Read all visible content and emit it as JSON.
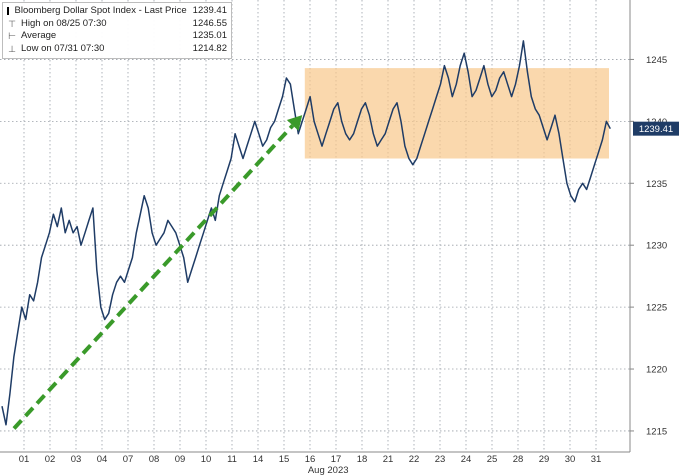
{
  "legend": {
    "rows": [
      {
        "label": "Bloomberg Dollar Spot Index - Last Price",
        "value": "1239.41",
        "marker": "square"
      },
      {
        "label": "High on 08/25 07:30",
        "value": "1246.55",
        "marker": "high"
      },
      {
        "label": "Average",
        "value": "1235.01",
        "marker": "avg"
      },
      {
        "label": "Low on 07/31 07:30",
        "value": "1214.82",
        "marker": "low"
      }
    ]
  },
  "last_price_label": "1239.41",
  "colors": {
    "line": "#1f3c66",
    "arrow": "#3a9a2a",
    "band": "#f8c88a",
    "grid": "#9aa0a8",
    "last_price_box": "#1f3c66"
  },
  "chart_data": {
    "type": "line",
    "title": "",
    "xlabel": "Aug 2023",
    "ylabel": "",
    "ylim": [
      1213.3,
      1249.8
    ],
    "y_ticks": [
      1215,
      1220,
      1225,
      1230,
      1235,
      1240,
      1245
    ],
    "x_tick_labels": [
      "01",
      "02",
      "03",
      "04",
      "07",
      "08",
      "09",
      "10",
      "11",
      "14",
      "15",
      "16",
      "17",
      "18",
      "21",
      "22",
      "23",
      "24",
      "25",
      "28",
      "29",
      "30",
      "31"
    ],
    "grid": true,
    "series": [
      {
        "values": [
          1217,
          1215.5,
          1218,
          1221,
          1223,
          1225,
          1224,
          1226,
          1225.5,
          1227,
          1229,
          1230,
          1231,
          1232.5,
          1231.5,
          1233,
          1231,
          1232,
          1231,
          1231.5,
          1230,
          1231,
          1232,
          1233,
          1228,
          1225,
          1224,
          1224.5,
          1226,
          1227,
          1227.5,
          1227,
          1228,
          1229,
          1231,
          1232.5,
          1234,
          1233,
          1231,
          1230,
          1230.5,
          1231,
          1232,
          1231.5,
          1231,
          1230,
          1229,
          1227,
          1228,
          1229,
          1230,
          1231,
          1232,
          1233,
          1232,
          1234,
          1235,
          1236,
          1237,
          1239,
          1238,
          1237,
          1238,
          1239,
          1240,
          1239,
          1238,
          1238.5,
          1239.5,
          1240,
          1241,
          1242,
          1243.5,
          1243,
          1241,
          1239,
          1240,
          1241,
          1242,
          1240,
          1239,
          1238,
          1239,
          1240,
          1241,
          1241.5,
          1240,
          1239,
          1238.5,
          1239,
          1240,
          1241,
          1241.5,
          1240.5,
          1239,
          1238,
          1238.5,
          1239,
          1240,
          1241,
          1241.5,
          1240,
          1238,
          1237,
          1236.5,
          1237,
          1238,
          1239,
          1240,
          1241,
          1242,
          1243,
          1244.5,
          1243.5,
          1242,
          1243,
          1244.5,
          1245.5,
          1244,
          1242,
          1242.5,
          1243.5,
          1244.5,
          1243,
          1242,
          1242.5,
          1243.5,
          1244,
          1243,
          1242,
          1243,
          1244.5,
          1246.5,
          1244,
          1242,
          1241,
          1240.5,
          1239.5,
          1238.5,
          1239.5,
          1240.5,
          1239,
          1237,
          1235,
          1234,
          1233.5,
          1234.5,
          1235,
          1234.5,
          1235.5,
          1236.5,
          1237.5,
          1238.5,
          1240,
          1239.41
        ]
      }
    ],
    "annotations": [
      {
        "type": "trend-arrow",
        "from": {
          "x": 0.0,
          "y": 1215.2
        },
        "to": {
          "x": 10.7,
          "y": 1240.5
        }
      },
      {
        "type": "range-band",
        "x_from": 10.8,
        "x_to": 22.5,
        "y_from": 1237.0,
        "y_to": 1244.3
      }
    ]
  }
}
